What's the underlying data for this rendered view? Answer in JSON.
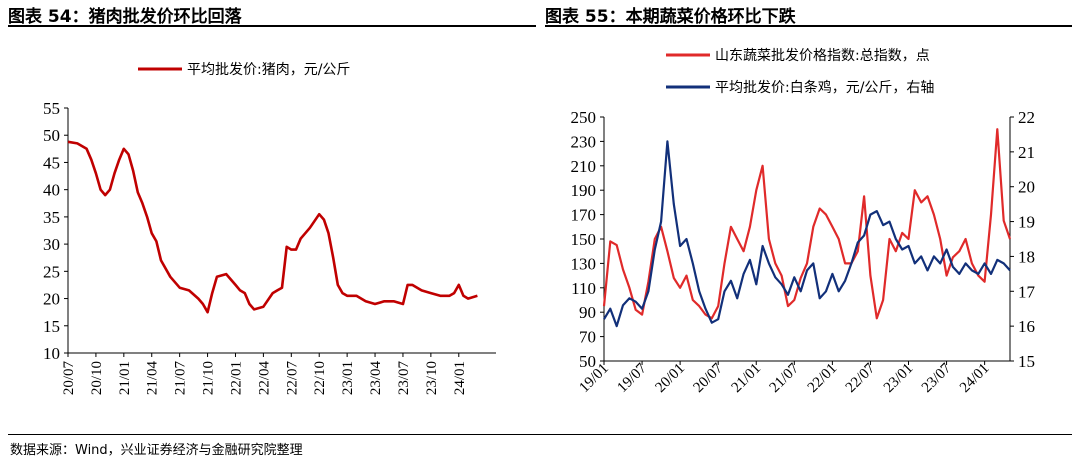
{
  "panels": {
    "left": {
      "title": "图表 54：猪肉批发价环比回落"
    },
    "right": {
      "title": "图表 55：本期蔬菜价格环比下跌"
    }
  },
  "footer": {
    "source": "数据来源：Wind，兴业证券经济与金融研究院整理"
  },
  "chart_data": [
    {
      "type": "line",
      "title": "猪肉批发价环比回落",
      "legend_position": "top",
      "ylim": [
        10,
        55
      ],
      "yticks": [
        10,
        15,
        20,
        25,
        30,
        35,
        40,
        45,
        50,
        55
      ],
      "xlim": [
        0,
        46
      ],
      "xtick_labels": [
        "20/07",
        "20/10",
        "21/01",
        "21/04",
        "21/07",
        "21/10",
        "22/01",
        "22/04",
        "22/07",
        "22/10",
        "23/01",
        "23/04",
        "23/07",
        "23/10",
        "24/01"
      ],
      "xtick_positions": [
        0,
        3,
        6,
        9,
        12,
        15,
        18,
        21,
        24,
        27,
        30,
        33,
        36,
        39,
        42
      ],
      "colors": {
        "series": "#c00000"
      },
      "series": [
        {
          "name": "平均批发价:猪肉，元/公斤",
          "x": [
            0,
            1,
            2,
            2.5,
            3,
            3.5,
            4,
            4.5,
            5,
            5.5,
            6,
            6.5,
            7,
            7.5,
            8,
            8.5,
            9,
            9.5,
            10,
            11,
            12,
            13,
            14,
            14.5,
            15,
            15.5,
            16,
            17,
            18,
            18.5,
            19,
            19.5,
            20,
            21,
            22,
            22.5,
            23,
            23.5,
            24,
            24.5,
            25,
            26,
            27,
            27.5,
            28,
            28.5,
            29,
            29.5,
            30,
            31,
            32,
            33,
            34,
            35,
            36,
            36.5,
            37,
            38,
            39,
            40,
            41,
            41.5,
            42,
            42.5,
            43,
            44
          ],
          "values": [
            48.8,
            48.5,
            47.5,
            45.5,
            43.0,
            40.0,
            39.0,
            40.0,
            43.0,
            45.5,
            47.5,
            46.5,
            43.5,
            39.5,
            37.5,
            35.0,
            32.0,
            30.5,
            27.0,
            24.0,
            22.0,
            21.5,
            20.0,
            19.0,
            17.5,
            21.0,
            24.0,
            24.5,
            22.5,
            21.5,
            21.0,
            19.0,
            18.0,
            18.5,
            21.0,
            21.5,
            22.0,
            29.5,
            29.0,
            29.0,
            31.0,
            33.0,
            35.5,
            34.5,
            32.0,
            27.5,
            22.5,
            21.0,
            20.5,
            20.5,
            19.5,
            19.0,
            19.5,
            19.5,
            19.0,
            22.5,
            22.5,
            21.5,
            21.0,
            20.5,
            20.5,
            21.0,
            22.5,
            20.5,
            20.0,
            20.5
          ]
        }
      ]
    },
    {
      "type": "line",
      "title": "本期蔬菜价格环比下跌",
      "legend_position": "top",
      "ylim": [
        50,
        250
      ],
      "yticks": [
        50,
        70,
        90,
        110,
        130,
        150,
        170,
        190,
        210,
        230,
        250
      ],
      "y2lim": [
        15,
        22
      ],
      "y2ticks": [
        15,
        16,
        17,
        18,
        19,
        20,
        21,
        22
      ],
      "xlim": [
        0,
        64
      ],
      "xtick_labels": [
        "19/01",
        "19/07",
        "20/01",
        "20/07",
        "21/01",
        "21/07",
        "22/01",
        "22/07",
        "23/01",
        "23/07",
        "24/01"
      ],
      "xtick_positions": [
        0,
        6,
        12,
        18,
        24,
        30,
        36,
        42,
        48,
        54,
        60
      ],
      "colors": {
        "series_1": "#e02a2a",
        "series_2": "#12307a"
      },
      "series": [
        {
          "name": "山东蔬菜批发价格指数:总指数，点",
          "axis": "left",
          "x": [
            0,
            1,
            2,
            3,
            4,
            5,
            6,
            7,
            8,
            9,
            10,
            11,
            12,
            13,
            14,
            15,
            16,
            17,
            18,
            19,
            20,
            21,
            22,
            23,
            24,
            25,
            26,
            27,
            28,
            29,
            30,
            31,
            32,
            33,
            34,
            35,
            36,
            37,
            38,
            39,
            40,
            41,
            42,
            43,
            44,
            45,
            46,
            47,
            48,
            49,
            50,
            51,
            52,
            53,
            54,
            55,
            56,
            57,
            58,
            59,
            60,
            61,
            62,
            63,
            64
          ],
          "values": [
            95,
            148,
            145,
            125,
            110,
            92,
            88,
            115,
            150,
            160,
            140,
            118,
            110,
            120,
            100,
            95,
            88,
            85,
            95,
            130,
            160,
            150,
            140,
            160,
            190,
            210,
            150,
            130,
            120,
            95,
            100,
            118,
            130,
            160,
            175,
            170,
            160,
            150,
            130,
            130,
            140,
            185,
            120,
            85,
            100,
            150,
            140,
            155,
            150,
            190,
            180,
            185,
            170,
            150,
            120,
            135,
            140,
            150,
            130,
            120,
            115,
            170,
            240,
            165,
            150
          ]
        },
        {
          "name": "平均批发价:白条鸡，元/公斤，右轴",
          "axis": "right",
          "x": [
            0,
            1,
            2,
            3,
            4,
            5,
            6,
            7,
            8,
            9,
            10,
            11,
            12,
            13,
            14,
            15,
            16,
            17,
            18,
            19,
            20,
            21,
            22,
            23,
            24,
            25,
            26,
            27,
            28,
            29,
            30,
            31,
            32,
            33,
            34,
            35,
            36,
            37,
            38,
            39,
            40,
            41,
            42,
            43,
            44,
            45,
            46,
            47,
            48,
            49,
            50,
            51,
            52,
            53,
            54,
            55,
            56,
            57,
            58,
            59,
            60,
            61,
            62,
            63,
            64
          ],
          "values": [
            16.2,
            16.5,
            16.0,
            16.6,
            16.8,
            16.7,
            16.5,
            17.0,
            18.2,
            19.0,
            21.3,
            19.5,
            18.3,
            18.5,
            17.8,
            17.0,
            16.5,
            16.1,
            16.2,
            17.0,
            17.3,
            16.8,
            17.5,
            17.9,
            17.2,
            18.3,
            17.8,
            17.4,
            17.2,
            16.9,
            17.4,
            17.0,
            17.6,
            17.8,
            16.8,
            17.0,
            17.5,
            17.0,
            17.3,
            17.8,
            18.4,
            18.6,
            19.2,
            19.3,
            18.9,
            19.0,
            18.5,
            18.2,
            18.3,
            17.8,
            18.0,
            17.6,
            18.0,
            17.8,
            18.2,
            17.7,
            17.5,
            17.8,
            17.6,
            17.5,
            17.8,
            17.5,
            17.9,
            17.8,
            17.6
          ]
        }
      ]
    }
  ]
}
